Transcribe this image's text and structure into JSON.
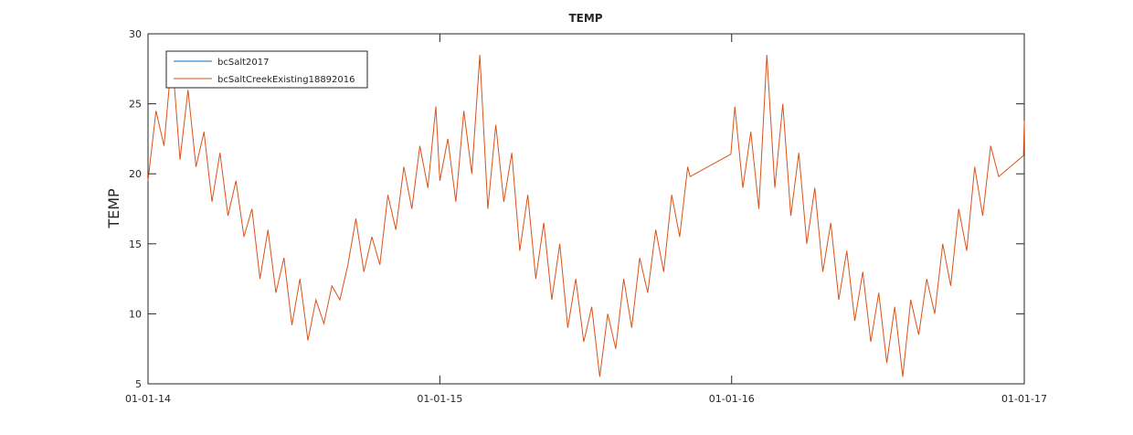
{
  "chart_data": {
    "type": "line",
    "title": "TEMP",
    "y_label": "TEMP",
    "xlim": [
      "2014-01-01",
      "2017-01-01"
    ],
    "xticks": [
      {
        "value": "2014-01-01",
        "label": "01-01-14"
      },
      {
        "value": "2015-01-01",
        "label": "01-01-15"
      },
      {
        "value": "2016-01-01",
        "label": "01-01-16"
      },
      {
        "value": "2017-01-01",
        "label": "01-01-17"
      }
    ],
    "ylim": [
      5,
      30
    ],
    "yticks": [
      5,
      10,
      15,
      20,
      25,
      30
    ],
    "legend": "upper-left",
    "series": [
      {
        "name": "bcSalt2017",
        "color": "#0072bd",
        "x": [],
        "values": []
      },
      {
        "name": "bcSaltCreekExisting18892016",
        "color": "#d95319",
        "x": [
          "2014-01-01",
          "2014-01-11",
          "2014-01-21",
          "2014-01-31",
          "2014-02-10",
          "2014-02-20",
          "2014-03-02",
          "2014-03-12",
          "2014-03-22",
          "2014-04-01",
          "2014-04-11",
          "2014-04-21",
          "2014-05-01",
          "2014-05-11",
          "2014-05-21",
          "2014-05-31",
          "2014-06-10",
          "2014-06-20",
          "2014-06-30",
          "2014-07-10",
          "2014-07-20",
          "2014-07-30",
          "2014-08-09",
          "2014-08-19",
          "2014-08-29",
          "2014-09-08",
          "2014-09-18",
          "2014-09-28",
          "2014-10-08",
          "2014-10-18",
          "2014-10-28",
          "2014-11-07",
          "2014-11-17",
          "2014-11-27",
          "2014-12-07",
          "2014-12-17",
          "2014-12-27",
          "2015-01-01",
          "2015-01-11",
          "2015-01-21",
          "2015-01-31",
          "2015-02-10",
          "2015-02-20",
          "2015-03-02",
          "2015-03-12",
          "2015-03-22",
          "2015-04-01",
          "2015-04-11",
          "2015-04-21",
          "2015-05-01",
          "2015-05-11",
          "2015-05-21",
          "2015-05-31",
          "2015-06-10",
          "2015-06-20",
          "2015-06-30",
          "2015-07-10",
          "2015-07-20",
          "2015-07-30",
          "2015-08-09",
          "2015-08-19",
          "2015-08-29",
          "2015-09-08",
          "2015-09-18",
          "2015-09-28",
          "2015-10-08",
          "2015-10-18",
          "2015-10-28",
          "2015-11-07",
          "2015-11-10",
          "2015-12-31",
          "2016-01-05",
          "2016-01-15",
          "2016-01-25",
          "2016-02-04",
          "2016-02-14",
          "2016-02-24",
          "2016-03-05",
          "2016-03-15",
          "2016-03-25",
          "2016-04-04",
          "2016-04-14",
          "2016-04-24",
          "2016-05-04",
          "2016-05-14",
          "2016-05-24",
          "2016-06-03",
          "2016-06-13",
          "2016-06-23",
          "2016-07-03",
          "2016-07-13",
          "2016-07-23",
          "2016-08-02",
          "2016-08-12",
          "2016-08-22",
          "2016-09-01",
          "2016-09-11",
          "2016-09-21",
          "2016-10-01",
          "2016-10-11",
          "2016-10-21",
          "2016-10-31",
          "2016-11-10",
          "2016-11-20",
          "2016-11-30",
          "2016-12-31",
          "2017-01-01"
        ],
        "values": [
          19.5,
          24.5,
          22,
          28.5,
          21,
          26,
          20.5,
          23,
          18,
          21.5,
          17,
          19.5,
          15.5,
          17.5,
          12.5,
          16,
          11.5,
          14,
          9.2,
          12.5,
          8.1,
          11,
          9.3,
          12,
          11,
          13.5,
          16.8,
          13,
          15.5,
          13.5,
          18.5,
          16,
          20.5,
          17.5,
          22,
          19,
          24.8,
          19.5,
          22.5,
          18,
          24.5,
          20,
          28.5,
          17.5,
          23.5,
          18,
          21.5,
          14.5,
          18.5,
          12.5,
          16.5,
          11,
          15,
          9,
          12.5,
          8,
          10.5,
          5.5,
          10,
          7.5,
          12.5,
          9,
          14,
          11.5,
          16,
          13,
          18.5,
          15.5,
          20.5,
          19.8,
          21.4,
          24.8,
          19,
          23,
          17.5,
          28.5,
          19,
          25,
          17,
          21.5,
          15,
          19,
          13,
          16.5,
          11,
          14.5,
          9.5,
          13,
          8,
          11.5,
          6.5,
          10.5,
          5.5,
          11,
          8.5,
          12.5,
          10,
          15,
          12,
          17.5,
          14.5,
          20.5,
          17,
          22,
          19.8,
          21.3,
          23.8
        ]
      }
    ]
  }
}
